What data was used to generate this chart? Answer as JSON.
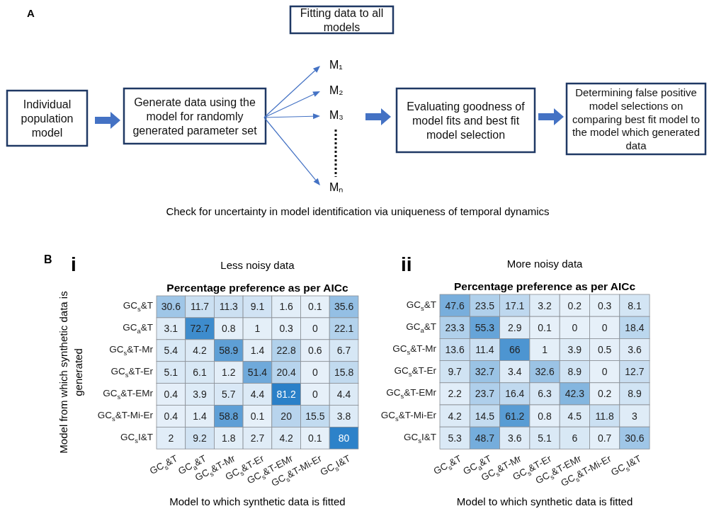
{
  "chart_data": [
    {
      "type": "other",
      "annotations": [
        "A",
        "Individual population model",
        "Generate data using the model for randomly generated parameter set",
        "Fitting data to all models",
        "M₁",
        "M₂",
        "M₃",
        "Mₙ",
        "Evaluating goodness of model fits and best fit model selection",
        "Determining false positive model selections on comparing best fit model to the model which generated data",
        "Check for uncertainty in model identification via uniqueness of temporal dynamics"
      ]
    },
    {
      "type": "heatmap",
      "title": "Percentage preference as per AICc",
      "subtitle": "Less noisy data",
      "xlabel": "Model to which synthetic data is fitted",
      "ylabel": "Model from which synthetic data is generated",
      "annotations": [
        "B",
        "i"
      ],
      "data_labels": true,
      "categories": [
        "GC$_{s}$&T",
        "GC$_{a}$&T",
        "GC$_{s}$&T-Mr",
        "GC$_{s}$&T-Er",
        "GC$_{s}$&T-EMr",
        "GC$_{s}$&T-Mi-Er",
        "GC$_{s}$I&T"
      ],
      "y_categories": [
        "GC$_{s}$&T",
        "GC$_{a}$&T",
        "GC$_{s}$&T-Mr",
        "GC$_{s}$&T-Er",
        "GC$_{s}$&T-EMr",
        "GC$_{s}$&T-Mi-Er",
        "GC$_{s}$I&T"
      ],
      "cells": [
        [
          30.6,
          11.7,
          11.3,
          9.1,
          1.6,
          0.1,
          35.6
        ],
        [
          3.1,
          72.7,
          0.8,
          1,
          0.3,
          0,
          22.1
        ],
        [
          5.4,
          4.2,
          58.9,
          1.4,
          22.8,
          0.6,
          6.7
        ],
        [
          5.1,
          6.1,
          1.2,
          51.4,
          20.4,
          0,
          15.8
        ],
        [
          0.4,
          3.9,
          5.7,
          4.4,
          81.2,
          0,
          4.4
        ],
        [
          0.4,
          1.4,
          58.8,
          0.1,
          20,
          15.5,
          3.8
        ],
        [
          2,
          9.2,
          1.8,
          2.7,
          4.2,
          0.1,
          80
        ]
      ]
    },
    {
      "type": "heatmap",
      "title": "Percentage preference as per AICc",
      "subtitle": "More noisy data",
      "xlabel": "Model to which synthetic data is fitted",
      "annotations": [
        "ii"
      ],
      "data_labels": true,
      "categories": [
        "GC$_{s}$&T",
        "GC$_{a}$&T",
        "GC$_{s}$&T-Mr",
        "GC$_{s}$&T-Er",
        "GC$_{s}$&T-EMr",
        "GC$_{s}$&T-Mi-Er",
        "GC$_{s}$I&T"
      ],
      "y_categories": [
        "GC$_{s}$&T",
        "GC$_{a}$&T",
        "GC$_{s}$&T-Mr",
        "GC$_{s}$&T-Er",
        "GC$_{s}$&T-EMr",
        "GC$_{s}$&T-Mi-Er",
        "GC$_{s}$I&T"
      ],
      "cells": [
        [
          47.6,
          23.5,
          17.1,
          3.2,
          0.2,
          0.3,
          8.1
        ],
        [
          23.3,
          55.3,
          2.9,
          0.1,
          0,
          0,
          18.4
        ],
        [
          13.6,
          11.4,
          66,
          1,
          3.9,
          0.5,
          3.6
        ],
        [
          9.7,
          32.7,
          3.4,
          32.6,
          8.9,
          0,
          12.7
        ],
        [
          2.2,
          23.7,
          16.4,
          6.3,
          42.3,
          0.2,
          8.9
        ],
        [
          4.2,
          14.5,
          61.2,
          0.8,
          4.5,
          11.8,
          3
        ],
        [
          5.3,
          48.7,
          3.6,
          5.1,
          6,
          0.7,
          30.6
        ]
      ]
    }
  ]
}
